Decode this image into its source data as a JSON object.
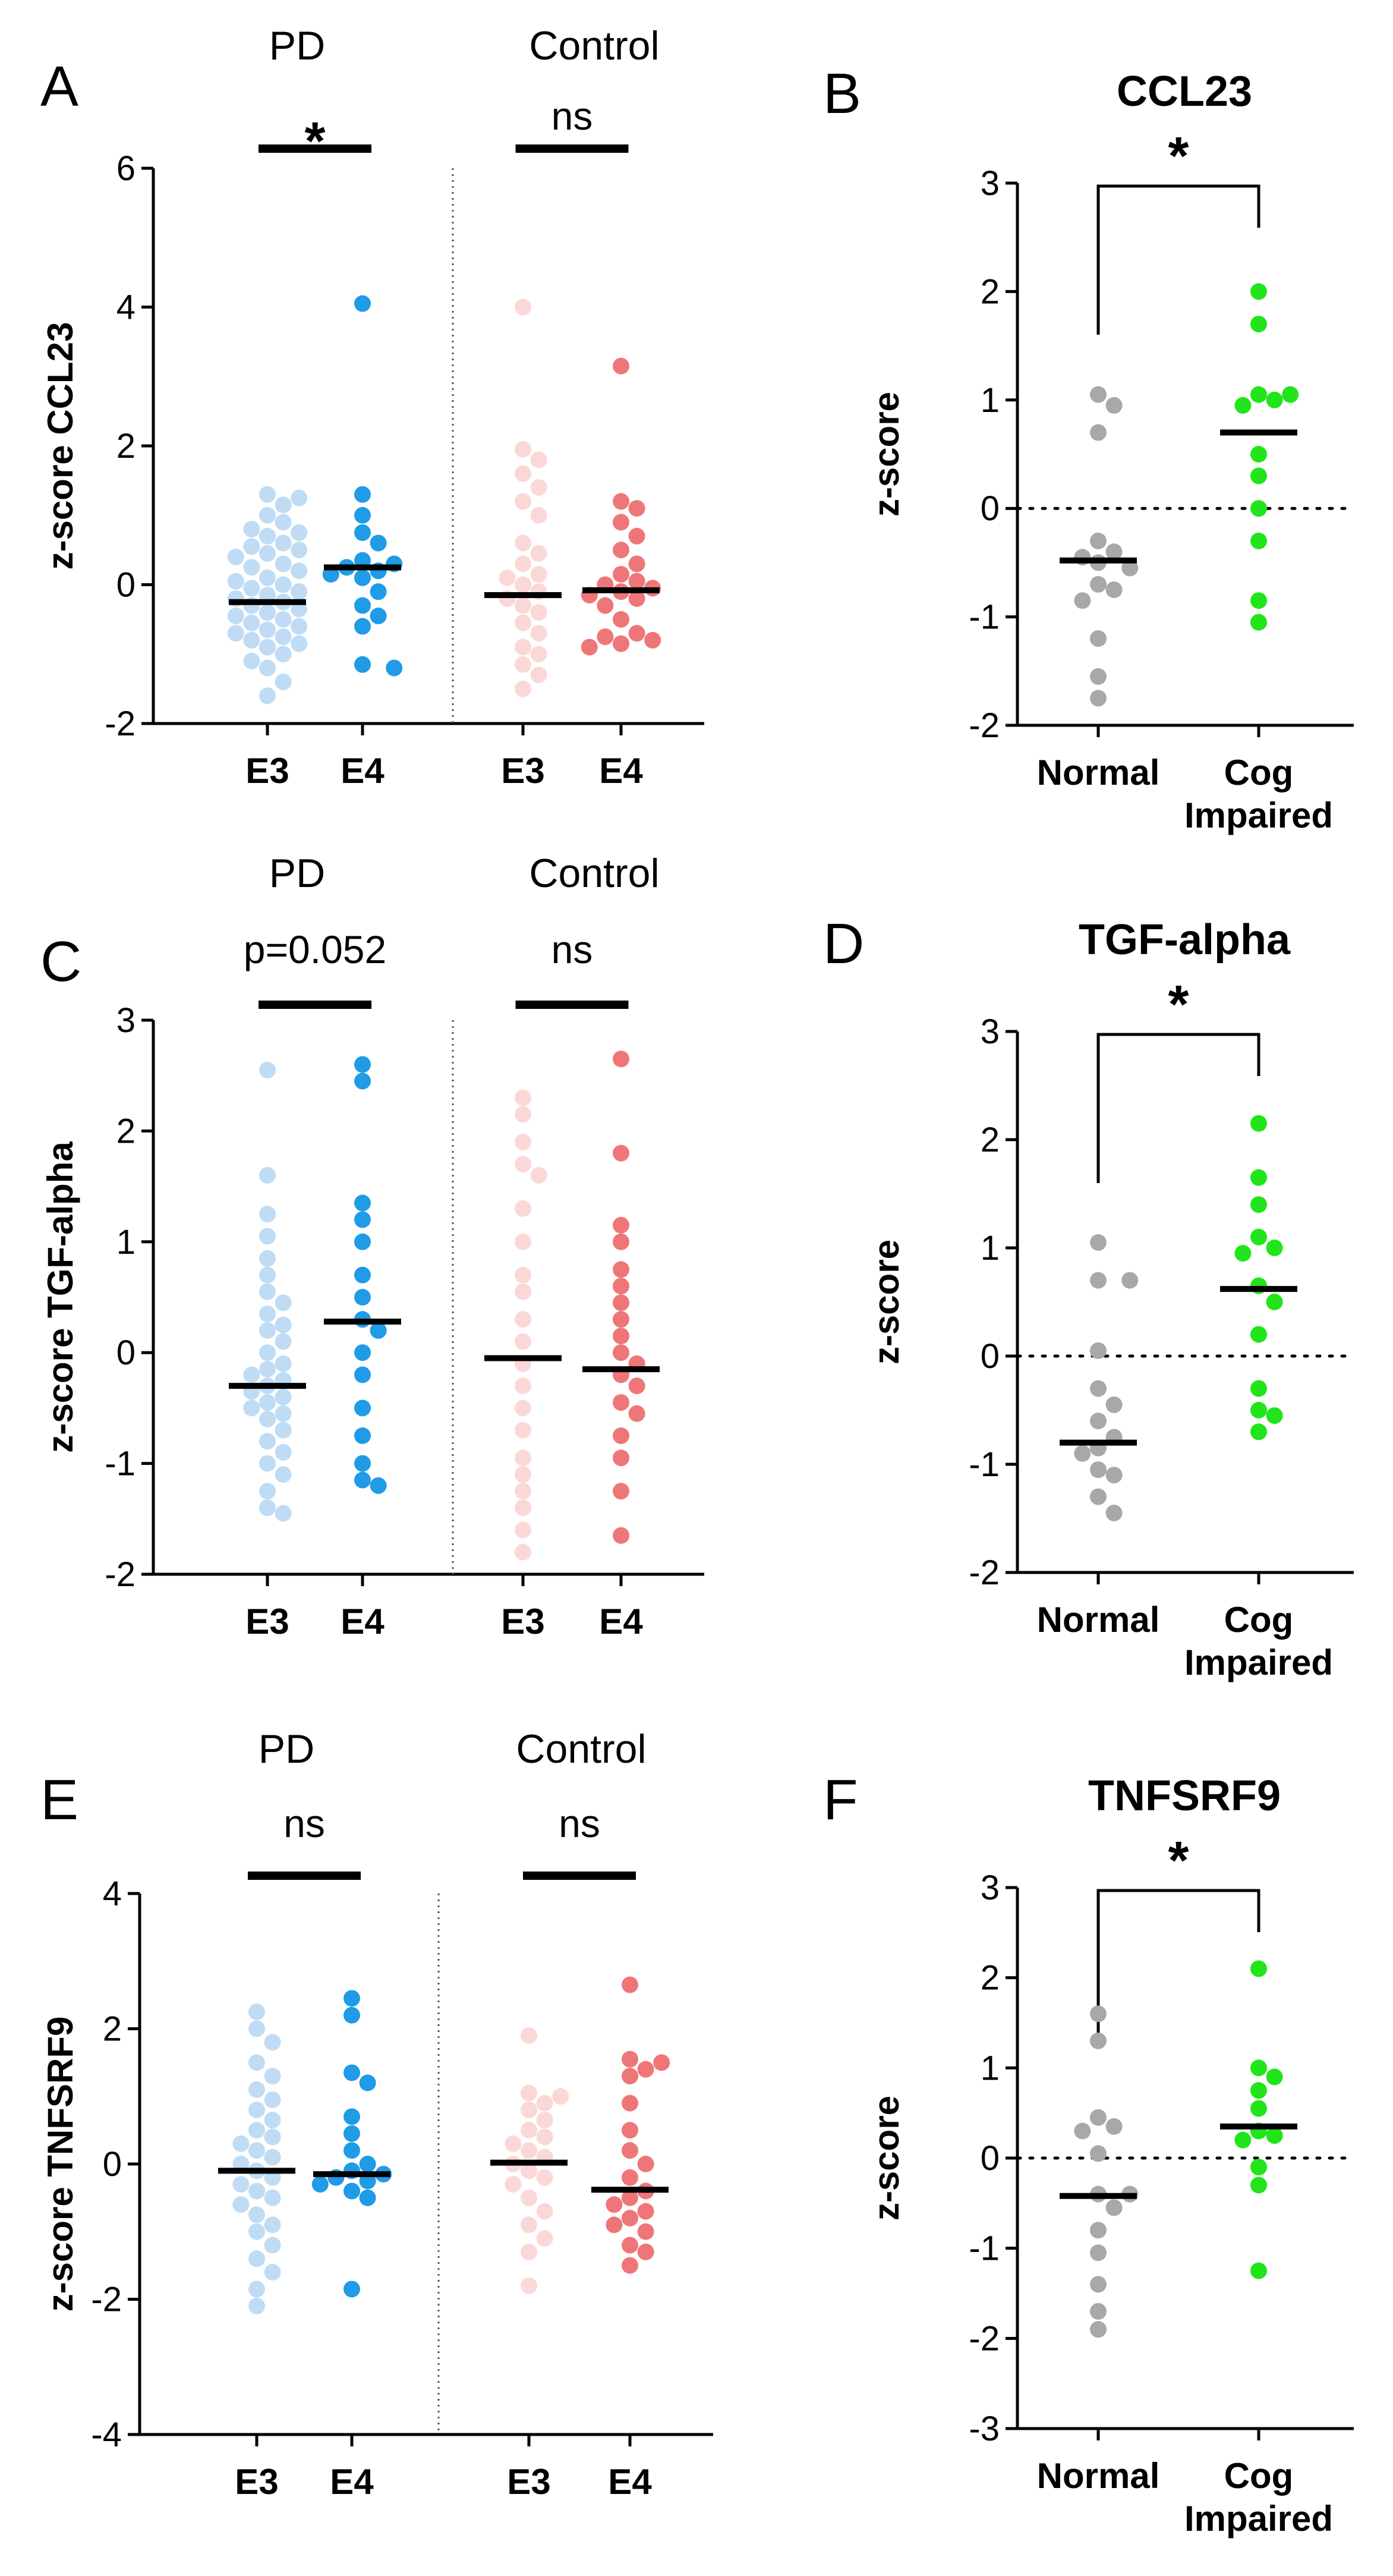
{
  "figure": {
    "panels": [
      {
        "id": "A",
        "letter": "A"
      },
      {
        "id": "B",
        "letter": "B"
      },
      {
        "id": "C",
        "letter": "C"
      },
      {
        "id": "D",
        "letter": "D"
      },
      {
        "id": "E",
        "letter": "E"
      },
      {
        "id": "F",
        "letter": "F"
      }
    ]
  },
  "colors": {
    "pd_e3": "#bfdcf4",
    "pd_e4": "#1f9be8",
    "control_e3": "#fbd8d8",
    "control_e4": "#ef7678",
    "normal": "#a8a8a8",
    "cog_impaired": "#22e41a",
    "median_line": "#000000"
  },
  "chart_data": [
    {
      "panel": "A",
      "type": "scatter",
      "title": "",
      "ylabel": "z-score CCL23",
      "ylim": [
        -2,
        6
      ],
      "yticks": [
        "-2",
        "0",
        "2",
        "4",
        "6"
      ],
      "group_labels": [
        "PD",
        "Control"
      ],
      "comparisons": [
        {
          "group": "PD",
          "label": "*"
        },
        {
          "group": "Control",
          "label": "ns"
        }
      ],
      "categories": [
        "E3",
        "E4",
        "E3",
        "E4"
      ],
      "series": [
        {
          "name": "PD E3",
          "median": -0.25,
          "values": [
            1.3,
            1.25,
            1.15,
            1.0,
            0.9,
            0.8,
            0.75,
            0.7,
            0.6,
            0.55,
            0.5,
            0.45,
            0.4,
            0.3,
            0.25,
            0.2,
            0.1,
            0.05,
            0.0,
            -0.05,
            -0.1,
            -0.15,
            -0.2,
            -0.25,
            -0.3,
            -0.35,
            -0.4,
            -0.45,
            -0.5,
            -0.55,
            -0.6,
            -0.65,
            -0.7,
            -0.75,
            -0.8,
            -0.85,
            -0.9,
            -1.0,
            -1.1,
            -1.2,
            -1.4,
            -1.6
          ]
        },
        {
          "name": "PD E4",
          "median": 0.25,
          "values": [
            4.05,
            1.3,
            1.0,
            0.75,
            0.6,
            0.35,
            0.3,
            0.25,
            0.2,
            0.15,
            0.1,
            -0.1,
            -0.3,
            -0.45,
            -0.6,
            -1.15,
            -1.2
          ]
        },
        {
          "name": "Control E3",
          "median": -0.15,
          "values": [
            4.0,
            1.95,
            1.8,
            1.6,
            1.4,
            1.2,
            1.0,
            0.6,
            0.45,
            0.3,
            0.15,
            0.1,
            0.0,
            -0.1,
            -0.2,
            -0.3,
            -0.4,
            -0.55,
            -0.7,
            -0.9,
            -1.0,
            -1.15,
            -1.3,
            -1.5
          ]
        },
        {
          "name": "Control E4",
          "median": -0.08,
          "values": [
            3.15,
            1.2,
            1.1,
            0.9,
            0.7,
            0.5,
            0.3,
            0.15,
            0.05,
            0.0,
            -0.05,
            -0.1,
            -0.15,
            -0.2,
            -0.3,
            -0.5,
            -0.7,
            -0.75,
            -0.8,
            -0.85,
            -0.9
          ]
        }
      ]
    },
    {
      "panel": "B",
      "type": "scatter",
      "title": "CCL23",
      "ylabel": "z-score",
      "ylim": [
        -2,
        3
      ],
      "yticks": [
        "-2",
        "-1",
        "0",
        "1",
        "2",
        "3"
      ],
      "categories": [
        "Normal",
        "Cog Impaired"
      ],
      "comparison": {
        "label": "*"
      },
      "reference_line": 0,
      "series": [
        {
          "name": "Normal",
          "median": -0.48,
          "values": [
            1.05,
            0.95,
            0.7,
            -0.3,
            -0.4,
            -0.45,
            -0.5,
            -0.55,
            -0.7,
            -0.75,
            -0.85,
            -1.2,
            -1.55,
            -1.75
          ]
        },
        {
          "name": "Cog Impaired",
          "median": 0.7,
          "values": [
            2.0,
            1.7,
            1.05,
            1.05,
            1.0,
            0.95,
            0.5,
            0.3,
            0.0,
            -0.3,
            -0.85,
            -1.05
          ]
        }
      ]
    },
    {
      "panel": "C",
      "type": "scatter",
      "title": "",
      "ylabel": "z-score TGF-alpha",
      "ylim": [
        -2,
        3
      ],
      "yticks": [
        "-2",
        "-1",
        "0",
        "1",
        "2",
        "3"
      ],
      "group_labels": [
        "PD",
        "Control"
      ],
      "comparisons": [
        {
          "group": "PD",
          "label": "p=0.052"
        },
        {
          "group": "Control",
          "label": "ns"
        }
      ],
      "categories": [
        "E3",
        "E4",
        "E3",
        "E4"
      ],
      "series": [
        {
          "name": "PD E3",
          "median": -0.3,
          "values": [
            2.55,
            1.6,
            1.25,
            1.05,
            0.85,
            0.7,
            0.55,
            0.45,
            0.35,
            0.25,
            0.2,
            0.1,
            0.0,
            -0.1,
            -0.15,
            -0.2,
            -0.25,
            -0.3,
            -0.35,
            -0.4,
            -0.45,
            -0.5,
            -0.55,
            -0.6,
            -0.7,
            -0.8,
            -0.9,
            -1.0,
            -1.1,
            -1.25,
            -1.4,
            -1.45
          ]
        },
        {
          "name": "PD E4",
          "median": 0.28,
          "values": [
            2.6,
            2.45,
            1.35,
            1.2,
            1.0,
            0.7,
            0.5,
            0.3,
            0.2,
            0.0,
            -0.2,
            -0.5,
            -0.75,
            -1.0,
            -1.15,
            -1.2
          ]
        },
        {
          "name": "Control E3",
          "median": -0.05,
          "values": [
            2.3,
            2.15,
            1.9,
            1.7,
            1.6,
            1.3,
            1.0,
            0.7,
            0.55,
            0.3,
            0.1,
            -0.1,
            -0.3,
            -0.5,
            -0.7,
            -0.95,
            -1.1,
            -1.25,
            -1.4,
            -1.6,
            -1.8
          ]
        },
        {
          "name": "Control E4",
          "median": -0.15,
          "values": [
            2.65,
            1.8,
            1.15,
            1.0,
            0.75,
            0.6,
            0.45,
            0.3,
            0.15,
            0.0,
            -0.1,
            -0.2,
            -0.3,
            -0.45,
            -0.55,
            -0.75,
            -0.95,
            -1.25,
            -1.65
          ]
        }
      ]
    },
    {
      "panel": "D",
      "type": "scatter",
      "title": "TGF-alpha",
      "ylabel": "z-score",
      "ylim": [
        -2,
        3
      ],
      "yticks": [
        "-2",
        "-1",
        "0",
        "1",
        "2",
        "3"
      ],
      "categories": [
        "Normal",
        "Cog Impaired"
      ],
      "comparison": {
        "label": "*"
      },
      "reference_line": 0,
      "series": [
        {
          "name": "Normal",
          "median": -0.8,
          "values": [
            1.05,
            0.7,
            0.7,
            0.05,
            -0.3,
            -0.45,
            -0.6,
            -0.75,
            -0.85,
            -0.9,
            -1.05,
            -1.1,
            -1.3,
            -1.45
          ]
        },
        {
          "name": "Cog Impaired",
          "median": 0.62,
          "values": [
            2.15,
            1.65,
            1.4,
            1.1,
            1.0,
            0.95,
            0.65,
            0.5,
            0.2,
            -0.3,
            -0.5,
            -0.55,
            -0.7
          ]
        }
      ]
    },
    {
      "panel": "E",
      "type": "scatter",
      "title": "",
      "ylabel": "z-score TNFSRF9",
      "ylim": [
        -4,
        4
      ],
      "yticks": [
        "-4",
        "-2",
        "0",
        "2",
        "4"
      ],
      "group_labels": [
        "PD",
        "Control"
      ],
      "comparisons": [
        {
          "group": "PD",
          "label": "ns"
        },
        {
          "group": "Control",
          "label": "ns"
        }
      ],
      "categories": [
        "E3",
        "E4",
        "E3",
        "E4"
      ],
      "series": [
        {
          "name": "PD E3",
          "median": -0.1,
          "values": [
            2.25,
            2.0,
            1.8,
            1.5,
            1.3,
            1.1,
            0.95,
            0.8,
            0.65,
            0.5,
            0.4,
            0.3,
            0.2,
            0.1,
            0.0,
            -0.1,
            -0.2,
            -0.3,
            -0.4,
            -0.5,
            -0.6,
            -0.75,
            -0.9,
            -1.0,
            -1.2,
            -1.4,
            -1.6,
            -1.85,
            -2.1
          ]
        },
        {
          "name": "PD E4",
          "median": -0.15,
          "values": [
            2.45,
            2.2,
            1.35,
            1.2,
            0.7,
            0.45,
            0.2,
            0.0,
            -0.1,
            -0.15,
            -0.2,
            -0.25,
            -0.3,
            -0.4,
            -0.5,
            -1.85
          ]
        },
        {
          "name": "Control E3",
          "median": 0.02,
          "values": [
            1.9,
            1.05,
            1.0,
            0.9,
            0.8,
            0.65,
            0.5,
            0.4,
            0.3,
            0.2,
            0.1,
            0.0,
            -0.1,
            -0.2,
            -0.3,
            -0.5,
            -0.7,
            -0.9,
            -1.1,
            -1.3,
            -1.8
          ]
        },
        {
          "name": "Control E4",
          "median": -0.38,
          "values": [
            2.65,
            1.55,
            1.5,
            1.4,
            1.3,
            0.9,
            0.5,
            0.2,
            0.0,
            -0.2,
            -0.4,
            -0.5,
            -0.6,
            -0.7,
            -0.8,
            -0.9,
            -1.0,
            -1.2,
            -1.3,
            -1.5
          ]
        }
      ]
    },
    {
      "panel": "F",
      "type": "scatter",
      "title": "TNFSRF9",
      "ylabel": "z-score",
      "ylim": [
        -3,
        3
      ],
      "yticks": [
        "-3",
        "-2",
        "-1",
        "0",
        "1",
        "2",
        "3"
      ],
      "categories": [
        "Normal",
        "Cog Impaired"
      ],
      "comparison": {
        "label": "*"
      },
      "reference_line": 0,
      "series": [
        {
          "name": "Normal",
          "median": -0.42,
          "values": [
            1.6,
            1.3,
            0.45,
            0.35,
            0.3,
            0.05,
            -0.4,
            -0.4,
            -0.55,
            -0.8,
            -1.05,
            -1.4,
            -1.7,
            -1.9
          ]
        },
        {
          "name": "Cog Impaired",
          "median": 0.35,
          "values": [
            2.1,
            1.0,
            0.9,
            0.75,
            0.55,
            0.3,
            0.25,
            0.2,
            -0.1,
            -0.3,
            -1.25
          ]
        }
      ]
    }
  ]
}
